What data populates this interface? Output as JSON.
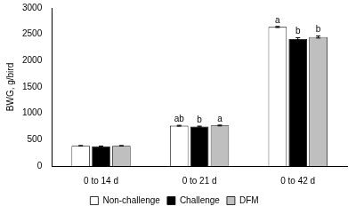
{
  "chart_data": {
    "type": "bar",
    "categories": [
      "0 to 14 d",
      "0 to 21 d",
      "0 to 42 d"
    ],
    "y_label": "BWG, g/bird",
    "series": [
      {
        "name": "Non-challenge",
        "color": "#ffffff",
        "values": [
          385,
          765,
          2640
        ],
        "errors": [
          5,
          8,
          10
        ],
        "annotations": [
          null,
          "ab",
          "a"
        ]
      },
      {
        "name": "Challenge",
        "color": "#000000",
        "values": [
          375,
          750,
          2410
        ],
        "errors": [
          5,
          8,
          25
        ],
        "annotations": [
          null,
          "b",
          "b"
        ]
      },
      {
        "name": "DFM",
        "color": "#bfbfbf",
        "values": [
          385,
          770,
          2450
        ],
        "errors": [
          5,
          8,
          20
        ],
        "annotations": [
          null,
          "a",
          "b"
        ]
      }
    ],
    "ylim": [
      0,
      3000
    ],
    "yticks": [
      0,
      500,
      1000,
      1500,
      2000,
      2500,
      3000
    ],
    "grid": false,
    "legend": "bottom"
  }
}
